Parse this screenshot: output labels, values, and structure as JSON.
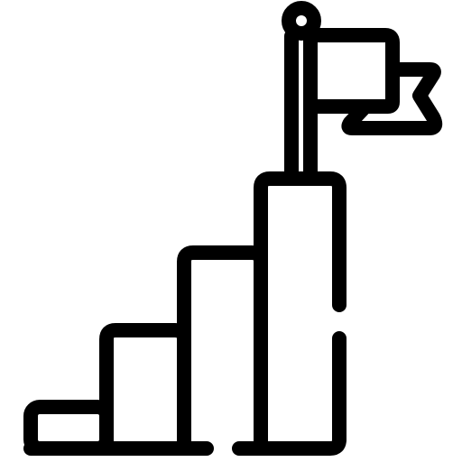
{
  "icon": {
    "name": "goal-growth-bar-chart-flag-icon",
    "stroke_color": "#000000",
    "background_color": "#ffffff"
  },
  "bars": [
    {
      "name": "bar-level-1",
      "level": 1
    },
    {
      "name": "bar-level-2",
      "level": 2
    },
    {
      "name": "bar-level-3",
      "level": 3
    },
    {
      "name": "bar-level-4",
      "level": 4
    }
  ]
}
